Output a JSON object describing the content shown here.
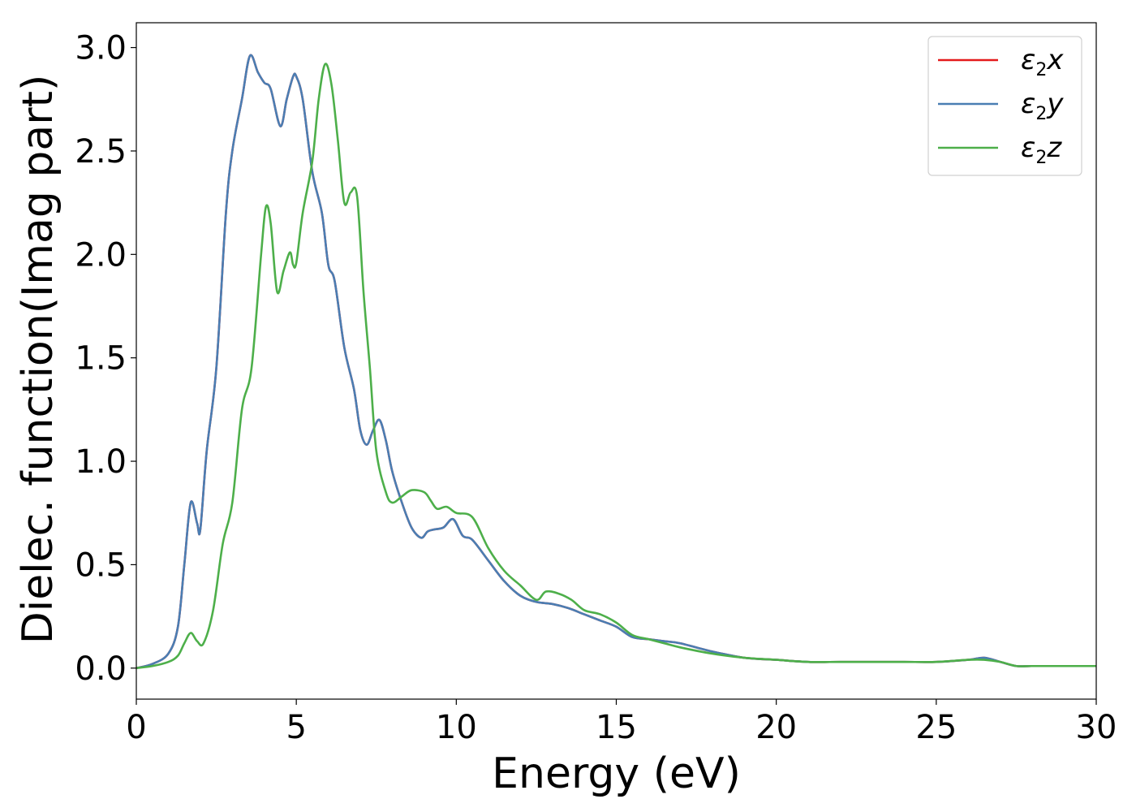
{
  "chart_data": {
    "type": "line",
    "xlabel": "Energy (eV)",
    "ylabel": "Dielec. function(Imag part)",
    "xlim": [
      0,
      30
    ],
    "ylim": [
      -0.15,
      3.12
    ],
    "xticks": [
      0,
      5,
      10,
      15,
      20,
      25,
      30
    ],
    "yticks": [
      0.0,
      0.5,
      1.0,
      1.5,
      2.0,
      2.5,
      3.0
    ],
    "xtick_labels": [
      "0",
      "5",
      "10",
      "15",
      "20",
      "25",
      "30"
    ],
    "ytick_labels": [
      "0.0",
      "0.5",
      "1.0",
      "1.5",
      "2.0",
      "2.5",
      "3.0"
    ],
    "grid": false,
    "legend_position": "top-right",
    "series": [
      {
        "name": "ε₂x",
        "label_base": "ε",
        "label_sub": "2",
        "label_var": "x",
        "color": "#e41a1c",
        "x": [
          0,
          0.5,
          1.0,
          1.3,
          1.5,
          1.7,
          1.9,
          2.0,
          2.2,
          2.5,
          2.8,
          3.0,
          3.3,
          3.55,
          3.8,
          4.0,
          4.2,
          4.5,
          4.7,
          4.9,
          5.0,
          5.2,
          5.5,
          5.8,
          6.0,
          6.2,
          6.5,
          6.8,
          7.0,
          7.2,
          7.4,
          7.6,
          7.8,
          8.0,
          8.3,
          8.6,
          8.9,
          9.1,
          9.3,
          9.6,
          9.9,
          10.2,
          10.5,
          11.0,
          11.5,
          12.0,
          12.5,
          13.0,
          13.5,
          14.0,
          14.5,
          15.0,
          15.5,
          16.0,
          16.5,
          17.0,
          18.0,
          19.0,
          20.0,
          21.0,
          22.0,
          23.0,
          24.0,
          25.0,
          26.0,
          26.5,
          27.0,
          27.5,
          28.0,
          29.0,
          30.0
        ],
        "values": [
          0.0,
          0.02,
          0.07,
          0.2,
          0.5,
          0.8,
          0.7,
          0.67,
          1.05,
          1.45,
          2.2,
          2.5,
          2.75,
          2.96,
          2.88,
          2.83,
          2.8,
          2.62,
          2.75,
          2.86,
          2.86,
          2.75,
          2.4,
          2.2,
          1.95,
          1.87,
          1.55,
          1.35,
          1.15,
          1.08,
          1.15,
          1.2,
          1.1,
          0.95,
          0.8,
          0.68,
          0.63,
          0.66,
          0.67,
          0.68,
          0.72,
          0.64,
          0.62,
          0.52,
          0.42,
          0.35,
          0.32,
          0.31,
          0.29,
          0.26,
          0.23,
          0.2,
          0.15,
          0.14,
          0.13,
          0.12,
          0.08,
          0.05,
          0.04,
          0.03,
          0.03,
          0.03,
          0.03,
          0.03,
          0.04,
          0.05,
          0.03,
          0.01,
          0.01,
          0.01,
          0.01
        ]
      },
      {
        "name": "ε₂y",
        "label_base": "ε",
        "label_sub": "2",
        "label_var": "y",
        "color": "#4a7eb3",
        "x": [
          0,
          0.5,
          1.0,
          1.3,
          1.5,
          1.7,
          1.9,
          2.0,
          2.2,
          2.5,
          2.8,
          3.0,
          3.3,
          3.55,
          3.8,
          4.0,
          4.2,
          4.5,
          4.7,
          4.9,
          5.0,
          5.2,
          5.5,
          5.8,
          6.0,
          6.2,
          6.5,
          6.8,
          7.0,
          7.2,
          7.4,
          7.6,
          7.8,
          8.0,
          8.3,
          8.6,
          8.9,
          9.1,
          9.3,
          9.6,
          9.9,
          10.2,
          10.5,
          11.0,
          11.5,
          12.0,
          12.5,
          13.0,
          13.5,
          14.0,
          14.5,
          15.0,
          15.5,
          16.0,
          16.5,
          17.0,
          18.0,
          19.0,
          20.0,
          21.0,
          22.0,
          23.0,
          24.0,
          25.0,
          26.0,
          26.5,
          27.0,
          27.5,
          28.0,
          29.0,
          30.0
        ],
        "values": [
          0.0,
          0.02,
          0.07,
          0.2,
          0.5,
          0.8,
          0.7,
          0.67,
          1.05,
          1.45,
          2.2,
          2.5,
          2.75,
          2.96,
          2.88,
          2.83,
          2.8,
          2.62,
          2.75,
          2.86,
          2.86,
          2.75,
          2.4,
          2.2,
          1.95,
          1.87,
          1.55,
          1.35,
          1.15,
          1.08,
          1.15,
          1.2,
          1.1,
          0.95,
          0.8,
          0.68,
          0.63,
          0.66,
          0.67,
          0.68,
          0.72,
          0.64,
          0.62,
          0.52,
          0.42,
          0.35,
          0.32,
          0.31,
          0.29,
          0.26,
          0.23,
          0.2,
          0.15,
          0.14,
          0.13,
          0.12,
          0.08,
          0.05,
          0.04,
          0.03,
          0.03,
          0.03,
          0.03,
          0.03,
          0.04,
          0.05,
          0.03,
          0.01,
          0.01,
          0.01,
          0.01
        ]
      },
      {
        "name": "ε₂z",
        "label_base": "ε",
        "label_sub": "2",
        "label_var": "z",
        "color": "#4daf4a",
        "x": [
          0,
          0.5,
          1.0,
          1.3,
          1.5,
          1.7,
          1.9,
          2.1,
          2.4,
          2.7,
          3.0,
          3.3,
          3.6,
          3.9,
          4.05,
          4.2,
          4.4,
          4.6,
          4.8,
          4.9,
          5.0,
          5.2,
          5.5,
          5.7,
          5.9,
          6.1,
          6.3,
          6.5,
          6.7,
          6.9,
          7.1,
          7.3,
          7.5,
          7.8,
          8.0,
          8.3,
          8.6,
          9.0,
          9.2,
          9.4,
          9.7,
          10.0,
          10.5,
          11.0,
          11.5,
          12.0,
          12.5,
          12.8,
          13.2,
          13.6,
          14.0,
          14.5,
          15.0,
          15.5,
          16.0,
          16.5,
          17.0,
          18.0,
          19.0,
          20.0,
          21.0,
          22.0,
          23.0,
          24.0,
          25.0,
          26.0,
          26.5,
          27.0,
          27.5,
          28.0,
          29.0,
          30.0
        ],
        "values": [
          0.0,
          0.01,
          0.03,
          0.06,
          0.12,
          0.17,
          0.13,
          0.12,
          0.28,
          0.6,
          0.8,
          1.25,
          1.45,
          2.0,
          2.23,
          2.15,
          1.82,
          1.92,
          2.01,
          1.95,
          1.96,
          2.2,
          2.45,
          2.75,
          2.92,
          2.82,
          2.55,
          2.25,
          2.3,
          2.28,
          1.82,
          1.45,
          1.05,
          0.85,
          0.8,
          0.83,
          0.86,
          0.85,
          0.81,
          0.77,
          0.78,
          0.75,
          0.73,
          0.58,
          0.47,
          0.4,
          0.33,
          0.37,
          0.36,
          0.33,
          0.28,
          0.26,
          0.22,
          0.16,
          0.14,
          0.12,
          0.1,
          0.07,
          0.05,
          0.04,
          0.03,
          0.03,
          0.03,
          0.03,
          0.03,
          0.04,
          0.04,
          0.03,
          0.01,
          0.01,
          0.01,
          0.01
        ]
      }
    ]
  }
}
